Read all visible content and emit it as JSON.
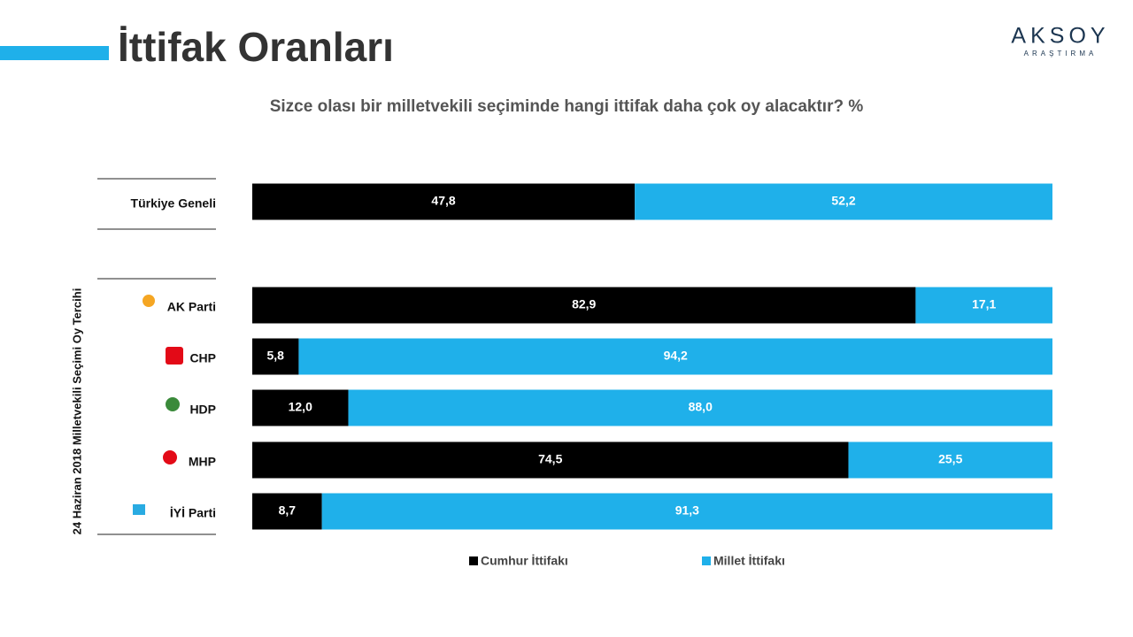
{
  "chart_data": {
    "type": "stacked-bar-100",
    "title": "İttifak Oranları",
    "subtitle": "Sizce olası bir milletvekili seçiminde hangi ittifak daha çok oy alacaktır? %",
    "y_label": "24 Haziran 2018 Milletvekili Seçimi Oy Tercihi",
    "brand": {
      "name": "AKSOY",
      "sub": "ARAŞTIRMA"
    },
    "categories": [
      "Türkiye Geneli",
      "AK Parti",
      "CHP",
      "HDP",
      "MHP",
      "İYİ Parti"
    ],
    "series": [
      {
        "name": "Cumhur İttifakı",
        "color": "#000000",
        "values": [
          47.8,
          82.9,
          5.8,
          12.0,
          74.5,
          8.7
        ],
        "value_labels": [
          "47,8",
          "82,9",
          "5,8",
          "12,0",
          "74,5",
          "8,7"
        ]
      },
      {
        "name": "Millet İttifakı",
        "color": "#1fb0ea",
        "values": [
          52.2,
          17.1,
          94.2,
          88.0,
          25.5,
          91.3
        ],
        "value_labels": [
          "52,2",
          "17,1",
          "94,2",
          "88,0",
          "25,5",
          "91,3"
        ]
      }
    ]
  }
}
